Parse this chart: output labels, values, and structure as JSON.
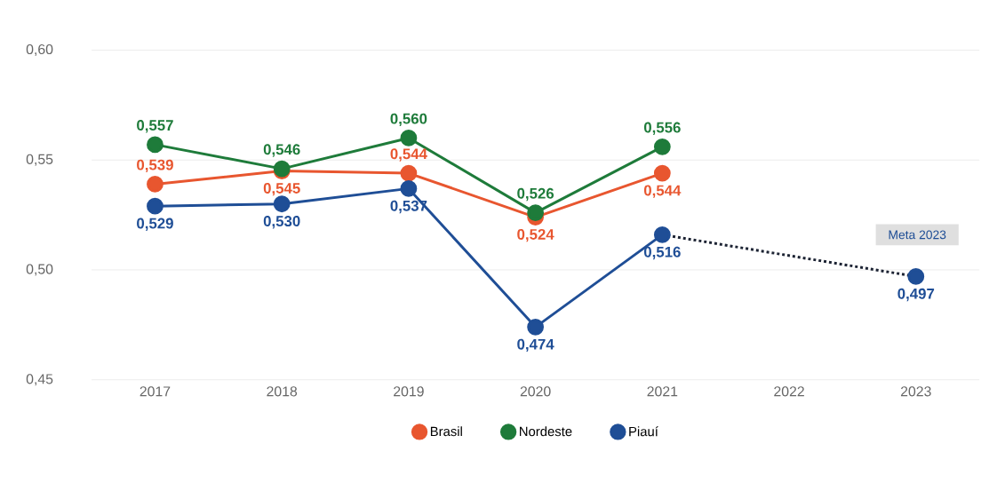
{
  "chart_data": {
    "type": "line",
    "categories": [
      "2017",
      "2018",
      "2019",
      "2020",
      "2021",
      "2022",
      "2023"
    ],
    "series": [
      {
        "name": "Brasil",
        "color": "#e8562f",
        "values": [
          0.539,
          0.545,
          0.544,
          0.524,
          0.544,
          null,
          null
        ],
        "value_labels": [
          "0,539",
          "0,545",
          "0,544",
          "0,524",
          "0,544",
          null,
          null
        ]
      },
      {
        "name": "Nordeste",
        "color": "#1e7b3a",
        "values": [
          0.557,
          0.546,
          0.56,
          0.526,
          0.556,
          null,
          null
        ],
        "value_labels": [
          "0,557",
          "0,546",
          "0,560",
          "0,526",
          "0,556",
          null,
          null
        ]
      },
      {
        "name": "Piauí",
        "color": "#1f4e96",
        "values": [
          0.529,
          0.53,
          0.537,
          0.474,
          0.516,
          null,
          0.497
        ],
        "value_labels": [
          "0,529",
          "0,530",
          "0,537",
          "0,474",
          "0,516",
          null,
          "0,497"
        ]
      },
      {
        "color": "#1c2333",
        "values": [
          null,
          null,
          null,
          null,
          0.516,
          null,
          0.497
        ],
        "line_style": "dotted",
        "marker": "none"
      }
    ],
    "ylim": [
      0.45,
      0.6
    ],
    "yticks": [
      {
        "value": 0.45,
        "label": "0,45"
      },
      {
        "value": 0.5,
        "label": "0,50"
      },
      {
        "value": 0.55,
        "label": "0,55"
      },
      {
        "value": 0.6,
        "label": "0,60"
      }
    ],
    "annotations": [
      "Meta 2023"
    ],
    "grid": "y",
    "legend": "bottom",
    "marker": "circle"
  }
}
